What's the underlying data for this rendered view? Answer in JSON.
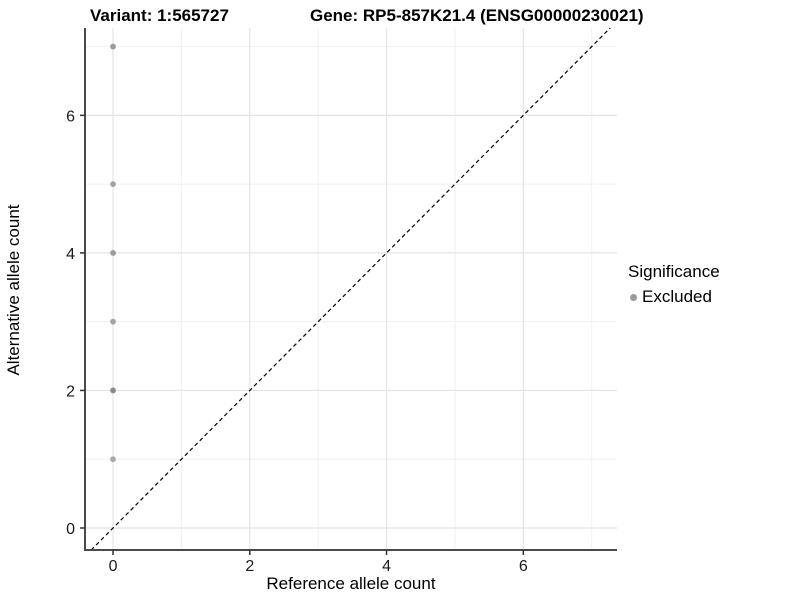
{
  "titles": {
    "variant": "Variant: 1:565727",
    "gene": "Gene: RP5-857K21.4 (ENSG00000230021)"
  },
  "legend": {
    "title": "Significance",
    "entries": [
      {
        "label": "Excluded",
        "color": "#9b9b9b"
      }
    ]
  },
  "colors": {
    "axis_line": "#4a4a4a",
    "major_grid": "#e4e4e4",
    "minor_grid": "#f0f0f0",
    "tick_mark": "#333333",
    "reference_line": "#000000",
    "panel_background": "#ffffff"
  },
  "chart_data": {
    "type": "scatter",
    "title": "Variant: 1:565727  Gene: RP5-857K21.4 (ENSG00000230021)",
    "xlabel": "Reference allele count",
    "ylabel": "Alternative allele count",
    "xlim": [
      -0.41,
      7.37
    ],
    "ylim": [
      -0.32,
      7.27
    ],
    "x_ticks": [
      0,
      2,
      4,
      6
    ],
    "y_ticks": [
      0,
      2,
      4,
      6
    ],
    "x_minor_ticks": [
      1,
      3,
      5,
      7
    ],
    "y_minor_ticks": [
      1,
      3,
      5,
      7
    ],
    "grid": true,
    "legend_position": "right",
    "series": [
      {
        "name": "Excluded",
        "points": [
          {
            "x": 0,
            "y": 1,
            "color": "#a8a8a8"
          },
          {
            "x": 0,
            "y": 2,
            "color": "#8a8a8a"
          },
          {
            "x": 0,
            "y": 3,
            "color": "#a3a3a3"
          },
          {
            "x": 0,
            "y": 4,
            "color": "#9b9b9b"
          },
          {
            "x": 0,
            "y": 5,
            "color": "#a3a3a3"
          },
          {
            "x": 0,
            "y": 7,
            "color": "#9b9b9b"
          }
        ]
      }
    ],
    "reference_line": {
      "type": "identity",
      "slope": 1,
      "intercept": 0,
      "style": "dashed"
    }
  }
}
